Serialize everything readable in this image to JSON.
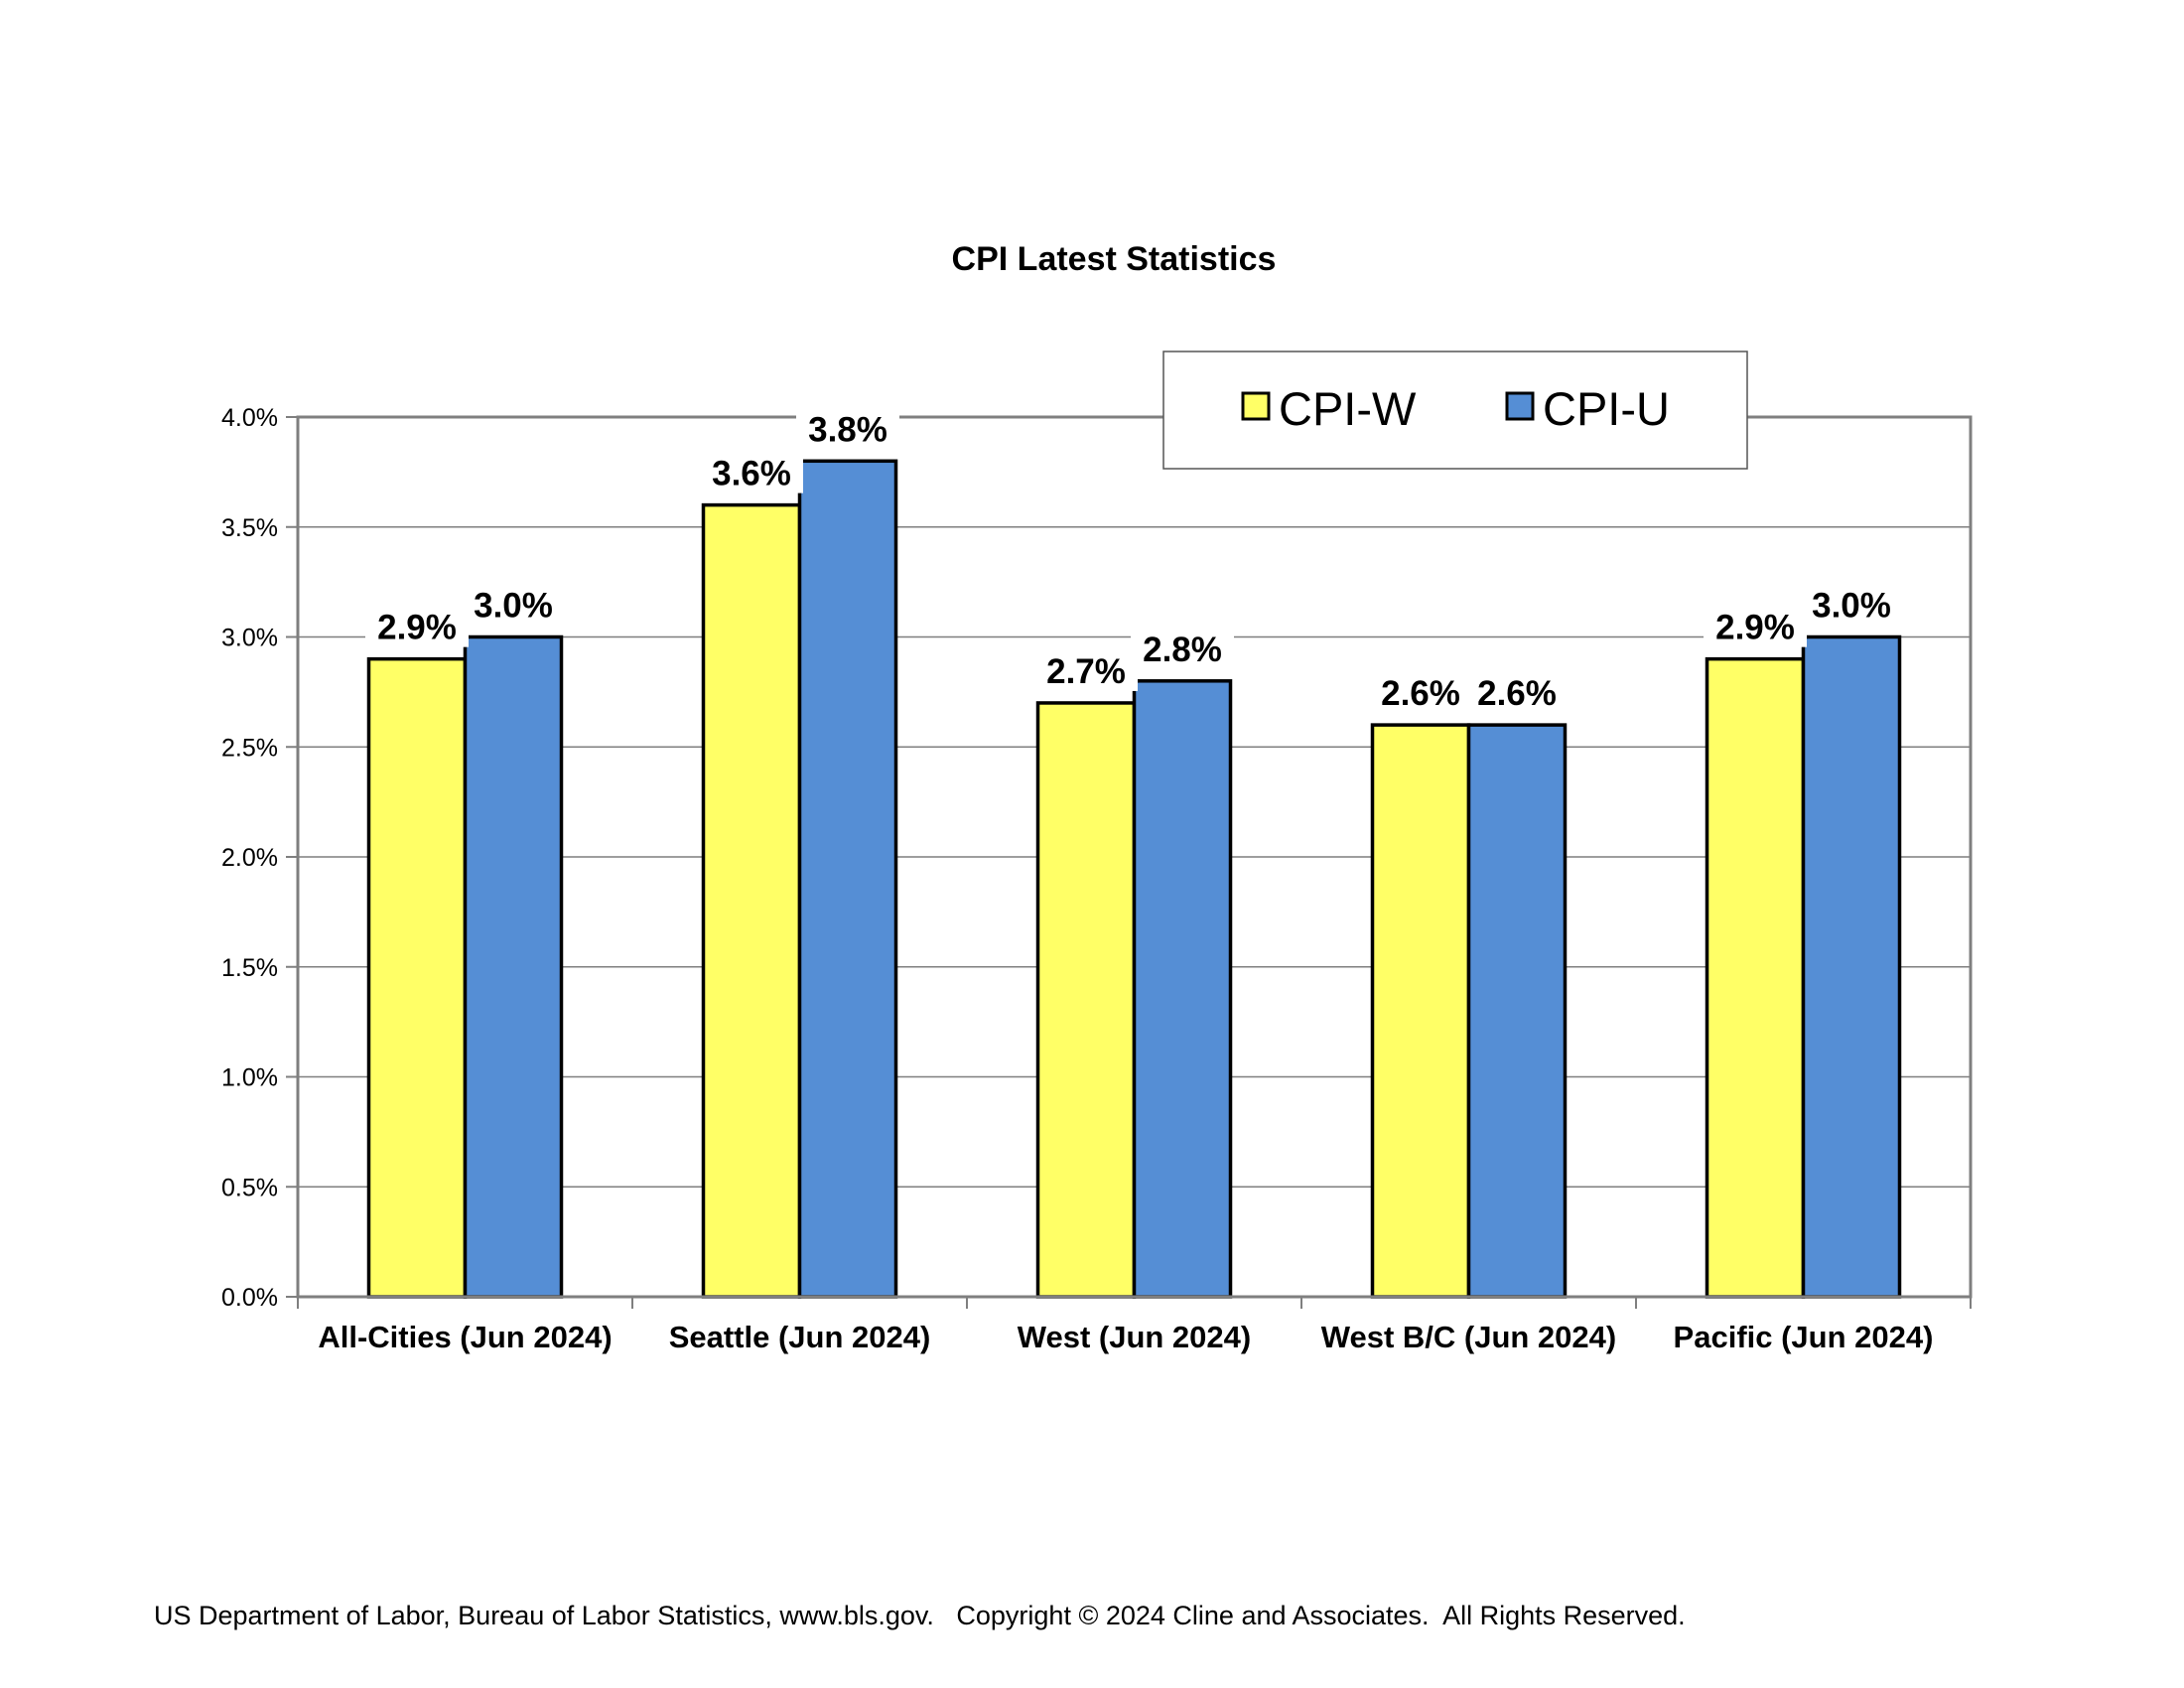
{
  "chart_data": {
    "type": "bar",
    "title": "CPI Latest Statistics",
    "categories": [
      "All-Cities (Jun 2024)",
      "Seattle (Jun 2024)",
      "West (Jun 2024)",
      "West B/C (Jun 2024)",
      "Pacific (Jun 2024)"
    ],
    "series": [
      {
        "name": "CPI-W",
        "color": "#FFFF66",
        "values": [
          2.9,
          3.6,
          2.7,
          2.6,
          2.9
        ],
        "labels": [
          "2.9%",
          "3.6%",
          "2.7%",
          "2.6%",
          "2.9%"
        ]
      },
      {
        "name": "CPI-U",
        "color": "#558ED5",
        "values": [
          3.0,
          3.8,
          2.8,
          2.6,
          3.0
        ],
        "labels": [
          "3.0%",
          "3.8%",
          "2.8%",
          "2.6%",
          "3.0%"
        ]
      }
    ],
    "ylim": [
      0,
      4.0
    ],
    "yticks": [
      0.0,
      0.5,
      1.0,
      1.5,
      2.0,
      2.5,
      3.0,
      3.5,
      4.0
    ],
    "ytick_labels": [
      "0.0%",
      "0.5%",
      "1.0%",
      "1.5%",
      "2.0%",
      "2.5%",
      "3.0%",
      "3.5%",
      "4.0%"
    ],
    "xlabel": "",
    "ylabel": "",
    "grid": true,
    "legend_position": "top-right"
  },
  "footer": {
    "text": "US Department of Labor, Bureau of Labor Statistics, www.bls.gov.   Copyright © 2024 Cline and Associates.  All Rights Reserved."
  }
}
